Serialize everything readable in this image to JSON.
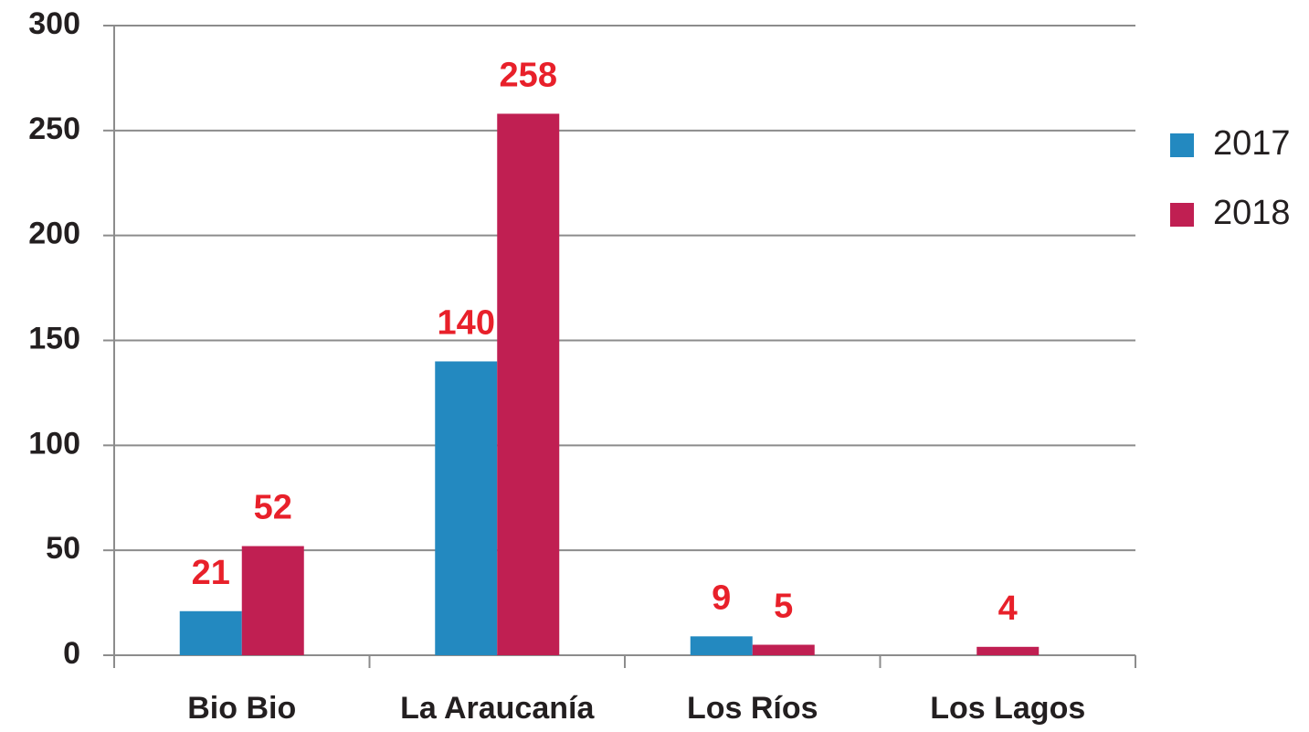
{
  "chart_data": {
    "type": "bar",
    "categories": [
      "Bio Bio",
      "La Araucanía",
      "Los Ríos",
      "Los Lagos"
    ],
    "series": [
      {
        "name": "2017",
        "color": "#2389c0",
        "values": [
          21,
          140,
          9,
          null
        ]
      },
      {
        "name": "2018",
        "color": "#c01f52",
        "values": [
          52,
          258,
          5,
          4
        ]
      }
    ],
    "ylim": [
      0,
      300
    ],
    "yticks": [
      0,
      50,
      100,
      150,
      200,
      250,
      300
    ],
    "grid": true,
    "legend": "right"
  }
}
